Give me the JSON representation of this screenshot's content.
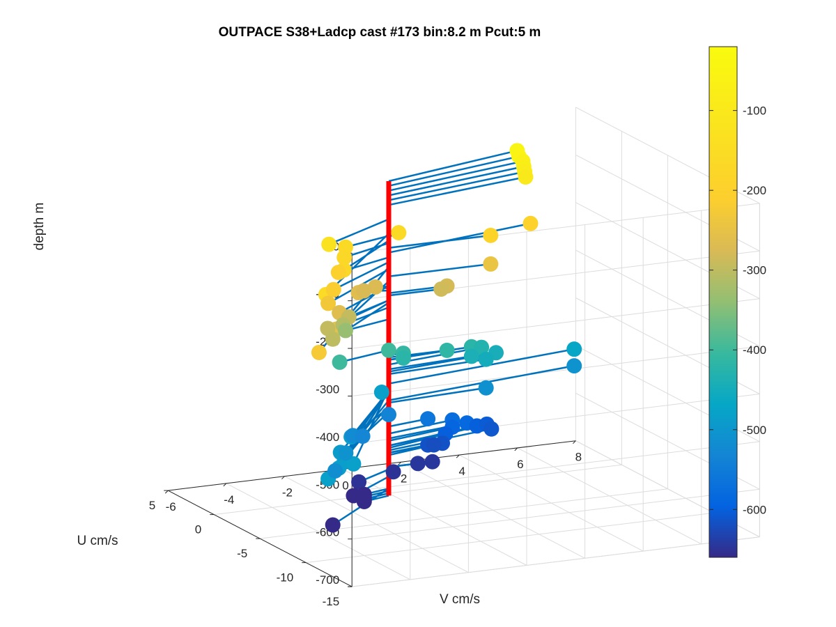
{
  "chart_data": {
    "type": "scatter",
    "title": "OUTPACE S38+Ladcp cast #173 bin:8.2 m  Pcut:5 m",
    "xlabel": "V cm/s",
    "ylabel": "U cm/s",
    "zlabel": "depth m",
    "v_ticks": [
      "-6",
      "-4",
      "-2",
      "0",
      "2",
      "4",
      "6",
      "8"
    ],
    "u_ticks": [
      "-15",
      "-10",
      "-5",
      "0",
      "5"
    ],
    "z_ticks": [
      "0",
      "-100",
      "-200",
      "-300",
      "-400",
      "-500",
      "-600",
      "-700"
    ],
    "colorbar_ticks": [
      "-100",
      "-200",
      "-300",
      "-400",
      "-500",
      "-600"
    ],
    "xlim": [
      -6,
      8
    ],
    "ylim": [
      -15,
      5
    ],
    "zlim": [
      -700,
      0
    ],
    "colorbar_range": [
      -660,
      -20
    ],
    "colormap": "parula",
    "grid": true,
    "view": "3d",
    "marker_line_color": "#0072BD",
    "axis_line_color": "#FF0000",
    "series": [
      {
        "name": "",
        "columns": [
          "v_cm_s",
          "u_cm_s",
          "depth_m"
        ],
        "points": [
          [
            5.2,
            2.5,
            -45
          ],
          [
            5.2,
            2.3,
            -55
          ],
          [
            5.3,
            2.2,
            -65
          ],
          [
            5.3,
            2.1,
            -75
          ],
          [
            5.3,
            2.0,
            -85
          ],
          [
            5.3,
            1.9,
            -95
          ],
          [
            -3.0,
            -3.0,
            -125
          ],
          [
            -5.0,
            -9.0,
            -155
          ],
          [
            -1.8,
            -1.0,
            -160
          ],
          [
            0.5,
            0.5,
            -162
          ],
          [
            -2.8,
            -4.0,
            -170
          ],
          [
            -2.0,
            -1.5,
            -175
          ],
          [
            3.5,
            0.0,
            -185
          ],
          [
            5.5,
            2.0,
            -195
          ],
          [
            -2.2,
            -1.5,
            -205
          ],
          [
            -3.0,
            -3.5,
            -215
          ],
          [
            -6.5,
            -13.0,
            -225
          ],
          [
            -3.5,
            -4.5,
            -230
          ],
          [
            3.5,
            0.0,
            -245
          ],
          [
            -4.0,
            -7.0,
            -255
          ],
          [
            -2.8,
            -3.5,
            -265
          ],
          [
            -1.2,
            -0.5,
            -265
          ],
          [
            -0.3,
            0.5,
            -270
          ],
          [
            -0.7,
            0.5,
            -275
          ],
          [
            2.0,
            0.0,
            -280
          ],
          [
            1.8,
            0.0,
            -285
          ],
          [
            -3.2,
            -3.5,
            -295
          ],
          [
            -2.0,
            -2.0,
            -295
          ],
          [
            -3.5,
            -5.0,
            -300
          ],
          [
            -2.2,
            -2.0,
            -310
          ],
          [
            -1.8,
            -1.0,
            -335
          ],
          [
            -2.0,
            -1.0,
            -400
          ],
          [
            0.0,
            0.0,
            -400
          ],
          [
            0.5,
            0.0,
            -410
          ],
          [
            2.0,
            0.0,
            -415
          ],
          [
            3.0,
            0.5,
            -420
          ],
          [
            0.5,
            0.0,
            -420
          ],
          [
            3.5,
            1.0,
            -430
          ],
          [
            3.0,
            0.5,
            -440
          ],
          [
            4.0,
            1.0,
            -445
          ],
          [
            3.5,
            0.5,
            -450
          ],
          [
            7.0,
            2.0,
            -470
          ],
          [
            -0.4,
            -0.5,
            -480
          ],
          [
            7.0,
            2.0,
            -505
          ],
          [
            3.5,
            0.5,
            -510
          ],
          [
            -6.5,
            -14.0,
            -480
          ],
          [
            -5.5,
            -12.0,
            -485
          ],
          [
            -5.0,
            -11.0,
            -485
          ],
          [
            -5.0,
            -12.0,
            -480
          ],
          [
            -4.5,
            -9.0,
            -490
          ],
          [
            -3.5,
            -7.0,
            -485
          ],
          [
            -4.0,
            -8.0,
            -505
          ],
          [
            -5.0,
            -10.0,
            -515
          ],
          [
            -2.5,
            -4.0,
            -520
          ],
          [
            -2.0,
            -3.5,
            -530
          ],
          [
            0.0,
            0.0,
            -535
          ],
          [
            1.5,
            0.5,
            -560
          ],
          [
            2.5,
            1.0,
            -575
          ],
          [
            3.0,
            1.0,
            -585
          ],
          [
            2.5,
            1.0,
            -590
          ],
          [
            2.2,
            0.8,
            -600
          ],
          [
            3.5,
            1.5,
            -600
          ],
          [
            4.0,
            2.0,
            -605
          ],
          [
            4.0,
            1.5,
            -610
          ],
          [
            2.0,
            0.5,
            -615
          ],
          [
            1.5,
            0.5,
            -615
          ],
          [
            1.8,
            0.8,
            -620
          ],
          [
            1.5,
            0.0,
            -645
          ],
          [
            0.0,
            -0.5,
            -650
          ],
          [
            1.0,
            0.0,
            -645
          ],
          [
            -1.5,
            -1.5,
            -650
          ],
          [
            -2.0,
            -2.5,
            -665
          ],
          [
            -3.5,
            -5.0,
            -690
          ],
          [
            -1.0,
            -0.5,
            -690
          ],
          [
            -1.0,
            -0.5,
            -695
          ],
          [
            -1.0,
            -0.5,
            -700
          ],
          [
            -1.0,
            -0.5,
            -705
          ]
        ]
      }
    ]
  }
}
